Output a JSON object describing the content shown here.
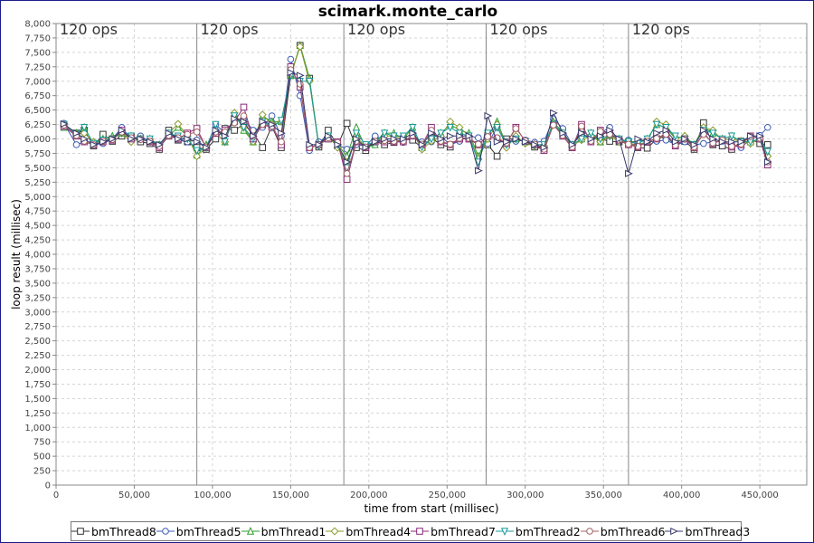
{
  "chart_data": {
    "type": "line",
    "title": "scimark.monte_carlo",
    "xlabel": "time from start (millisec)",
    "ylabel": "loop result (millisec)",
    "xlim": [
      0,
      480000
    ],
    "ylim": [
      0,
      8000
    ],
    "x_ticks": [
      0,
      50000,
      100000,
      150000,
      200000,
      250000,
      300000,
      350000,
      400000,
      450000
    ],
    "x_tick_labels": [
      "0",
      "50,000",
      "100,000",
      "150,000",
      "200,000",
      "250,000",
      "300,000",
      "350,000",
      "400,000",
      "450,000"
    ],
    "y_step": 250,
    "grid": true,
    "legend_position": "bottom",
    "phase_markers": [
      {
        "x": 90000,
        "label": "120 ops"
      },
      {
        "x": 184000,
        "label": "120 ops"
      },
      {
        "x": 275000,
        "label": "120 ops"
      },
      {
        "x": 366000,
        "label": "120 ops"
      }
    ],
    "first_phase_label": "120 ops",
    "x": [
      5000,
      13000,
      18000,
      24000,
      30000,
      36000,
      42000,
      48000,
      54000,
      60000,
      66000,
      72000,
      78000,
      84000,
      90000,
      96000,
      102000,
      108000,
      114000,
      120000,
      126000,
      132000,
      138000,
      144000,
      150000,
      156000,
      162000,
      168000,
      174000,
      180000,
      186000,
      192000,
      198000,
      204000,
      210000,
      216000,
      222000,
      228000,
      234000,
      240000,
      246000,
      252000,
      258000,
      264000,
      270000,
      276000,
      282000,
      288000,
      294000,
      300000,
      306000,
      312000,
      318000,
      324000,
      330000,
      336000,
      342000,
      348000,
      354000,
      360000,
      366000,
      372000,
      378000,
      384000,
      390000,
      396000,
      402000,
      408000,
      414000,
      420000,
      426000,
      432000,
      438000,
      444000,
      450000,
      455000
    ],
    "series": [
      {
        "name": "bmThread8",
        "marker": "square",
        "color": "#333333",
        "values": [
          6250,
          6100,
          6150,
          5880,
          6080,
          5960,
          6050,
          6050,
          5950,
          5920,
          5820,
          6150,
          5980,
          5950,
          5850,
          5820,
          6000,
          6180,
          6150,
          6250,
          6100,
          5850,
          6220,
          5850,
          7100,
          7620,
          7050,
          5860,
          6150,
          5880,
          6270,
          5850,
          5800,
          5960,
          5900,
          5940,
          6000,
          5980,
          5850,
          6020,
          5900,
          5860,
          6030,
          6000,
          5900,
          5900,
          5700,
          6000,
          6000,
          5960,
          5860,
          5820,
          6250,
          6050,
          5850,
          6180,
          6000,
          6000,
          5960,
          5950,
          5950,
          5850,
          5840,
          6000,
          6050,
          5880,
          5960,
          5820,
          6280,
          5900,
          5880,
          5820,
          5960,
          6000,
          5920,
          5900
        ]
      },
      {
        "name": "bmThread5",
        "marker": "circle",
        "color": "#3b5bb5",
        "values": [
          6270,
          5900,
          5950,
          5900,
          5920,
          6000,
          6200,
          6000,
          6050,
          5950,
          5900,
          6100,
          6000,
          5950,
          5980,
          5850,
          6250,
          6100,
          6300,
          6350,
          6150,
          6200,
          6400,
          6050,
          7380,
          6750,
          5800,
          5950,
          6050,
          5900,
          5820,
          5900,
          5880,
          6050,
          5980,
          5960,
          5940,
          6050,
          5950,
          5950,
          6050,
          5900,
          5960,
          6050,
          6020,
          5920,
          6200,
          5950,
          5960,
          5980,
          5940,
          5960,
          6350,
          6180,
          5900,
          6080,
          6000,
          6100,
          6200,
          5950,
          5980,
          5900,
          5950,
          5960,
          5980,
          5900,
          5950,
          5900,
          5920,
          5950,
          5960,
          5900,
          5850,
          6000,
          6060,
          6200
        ]
      },
      {
        "name": "bmThread1",
        "marker": "triangle-up",
        "color": "#2e9e2e",
        "values": [
          6200,
          6100,
          6200,
          5920,
          6000,
          6050,
          6100,
          6050,
          6000,
          6000,
          5900,
          6050,
          6200,
          6050,
          5720,
          5900,
          6100,
          5950,
          6450,
          6150,
          5950,
          6400,
          6300,
          6300,
          7100,
          7620,
          7050,
          5900,
          6000,
          5900,
          5700,
          6200,
          5850,
          5900,
          6100,
          6100,
          6000,
          6200,
          5850,
          6000,
          6100,
          6250,
          6150,
          6100,
          5700,
          6050,
          6300,
          5900,
          6000,
          5950,
          5900,
          5850,
          6300,
          6100,
          5900,
          6000,
          6100,
          5950,
          6100,
          6000,
          5960,
          5950,
          6000,
          6250,
          6200,
          6000,
          6050,
          5900,
          6200,
          6100,
          6000,
          6050,
          5960,
          5950,
          6000,
          5750
        ]
      },
      {
        "name": "bmThread4",
        "marker": "diamond",
        "color": "#8a9a2a",
        "values": [
          6230,
          6080,
          6100,
          5950,
          5950,
          6000,
          6100,
          5950,
          6000,
          5950,
          5850,
          6100,
          6260,
          6050,
          5700,
          5850,
          6100,
          5950,
          6450,
          6200,
          5950,
          6420,
          6250,
          6300,
          7100,
          7600,
          7000,
          5880,
          6050,
          5850,
          5600,
          6050,
          5850,
          5950,
          6050,
          6050,
          6000,
          6100,
          5820,
          5960,
          6050,
          6300,
          6200,
          6050,
          5650,
          6000,
          6250,
          5850,
          6050,
          5920,
          5880,
          5880,
          6250,
          6100,
          5880,
          5980,
          6050,
          5950,
          6050,
          5950,
          5920,
          5900,
          5950,
          6300,
          6250,
          6000,
          6050,
          5850,
          6200,
          6150,
          5980,
          6000,
          5950,
          5920,
          6000,
          5700
        ]
      },
      {
        "name": "bmThread7",
        "marker": "square",
        "color": "#8a2a7a",
        "values": [
          6220,
          6050,
          5950,
          5900,
          5950,
          5980,
          6150,
          6000,
          6000,
          5950,
          5850,
          6050,
          6000,
          6100,
          6180,
          5850,
          6100,
          6150,
          6300,
          6550,
          6000,
          6250,
          6200,
          5900,
          7250,
          6900,
          5850,
          5900,
          6000,
          5950,
          5300,
          5950,
          5850,
          5950,
          5950,
          5950,
          5950,
          6050,
          5900,
          6200,
          5950,
          5900,
          6000,
          6000,
          5900,
          6050,
          6000,
          5920,
          6200,
          5960,
          5900,
          5800,
          6250,
          6050,
          5850,
          6250,
          5950,
          6150,
          6100,
          5980,
          5900,
          5860,
          5950,
          6000,
          6100,
          5880,
          6000,
          5850,
          6100,
          5920,
          5980,
          5860,
          5900,
          6050,
          6000,
          5550
        ]
      },
      {
        "name": "bmThread2",
        "marker": "triangle-down",
        "color": "#1a9a9a",
        "values": [
          6250,
          6080,
          6200,
          5920,
          5980,
          6000,
          6100,
          6050,
          6000,
          6000,
          5880,
          6100,
          6050,
          6000,
          5800,
          5850,
          6250,
          5950,
          6400,
          6200,
          6000,
          6300,
          6200,
          6320,
          7100,
          7000,
          7000,
          5880,
          6050,
          5900,
          5500,
          6100,
          5900,
          5950,
          6100,
          6050,
          6050,
          6200,
          5860,
          6000,
          6100,
          6200,
          6100,
          6050,
          5600,
          6100,
          6200,
          5900,
          6000,
          5950,
          5900,
          5900,
          6250,
          6100,
          5900,
          6000,
          6100,
          6000,
          6050,
          6000,
          5950,
          5920,
          6000,
          6250,
          6200,
          6050,
          6000,
          5900,
          6150,
          6100,
          6000,
          6050,
          5950,
          5950,
          6000,
          5780
        ]
      },
      {
        "name": "bmThread6",
        "marker": "circle",
        "color": "#a06060",
        "values": [
          6240,
          6060,
          5960,
          5900,
          5960,
          5990,
          6120,
          6020,
          5990,
          5960,
          5870,
          6060,
          6020,
          6080,
          6120,
          5860,
          6120,
          6120,
          6280,
          6400,
          6050,
          6250,
          6220,
          5950,
          7200,
          6950,
          5850,
          5900,
          6020,
          5940,
          5400,
          5960,
          5860,
          5960,
          5970,
          5960,
          5960,
          6060,
          5910,
          6150,
          5960,
          5910,
          6010,
          6010,
          5910,
          6040,
          6020,
          5930,
          6180,
          5970,
          5910,
          5820,
          6240,
          6060,
          5860,
          6220,
          5960,
          6130,
          6080,
          5980,
          5910,
          5870,
          5960,
          6010,
          6080,
          5890,
          6000,
          5860,
          6080,
          5930,
          5980,
          5870,
          5910,
          6040,
          6010,
          5600
        ]
      },
      {
        "name": "bmThread3",
        "marker": "triangle-right",
        "color": "#3a3a6a",
        "values": [
          6260,
          6100,
          6000,
          5900,
          5950,
          6000,
          6150,
          6000,
          6000,
          5950,
          5900,
          6100,
          6000,
          6000,
          5950,
          5850,
          6150,
          6050,
          6350,
          6300,
          6050,
          6300,
          6250,
          6100,
          7150,
          7100,
          5900,
          5900,
          6050,
          5900,
          5600,
          6000,
          5850,
          5950,
          6000,
          6000,
          6000,
          6100,
          5900,
          6100,
          6000,
          6050,
          6050,
          6050,
          5450,
          6400,
          5950,
          5950,
          6000,
          5950,
          5900,
          5850,
          6450,
          6100,
          5900,
          6100,
          6000,
          6050,
          6150,
          6000,
          5400,
          6000,
          5950,
          6100,
          6150,
          5950,
          6000,
          5900,
          6150,
          6000,
          5950,
          5950,
          5950,
          6050,
          6050,
          5600
        ]
      }
    ]
  }
}
